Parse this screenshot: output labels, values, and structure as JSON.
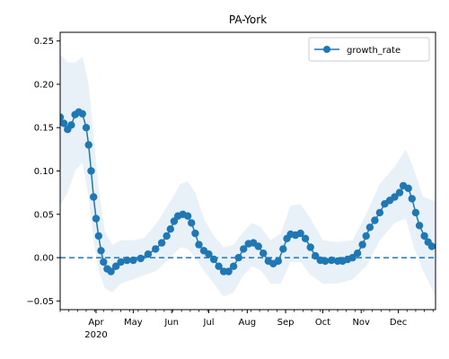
{
  "chart_data": {
    "type": "line",
    "title": "PA-York",
    "xlabel": "",
    "ylabel": "",
    "x_start": "2020-03-03",
    "x_end": "2020-12-31",
    "xlim": [
      "2020-03-03",
      "2020-12-31"
    ],
    "ylim": [
      -0.06,
      0.26
    ],
    "y_ticks": [
      {
        "value": -0.05,
        "label": "−0.05"
      },
      {
        "value": 0.0,
        "label": "0.00"
      },
      {
        "value": 0.05,
        "label": "0.05"
      },
      {
        "value": 0.1,
        "label": "0.10"
      },
      {
        "value": 0.15,
        "label": "0.15"
      },
      {
        "value": 0.2,
        "label": "0.20"
      },
      {
        "value": 0.25,
        "label": "0.25"
      }
    ],
    "x_ticks": [
      {
        "date": "2020-04-01",
        "label": "Apr",
        "sublabel": "2020"
      },
      {
        "date": "2020-05-01",
        "label": "May",
        "sublabel": ""
      },
      {
        "date": "2020-06-01",
        "label": "Jun",
        "sublabel": ""
      },
      {
        "date": "2020-07-01",
        "label": "Jul",
        "sublabel": ""
      },
      {
        "date": "2020-08-01",
        "label": "Aug",
        "sublabel": ""
      },
      {
        "date": "2020-09-01",
        "label": "Sep",
        "sublabel": ""
      },
      {
        "date": "2020-10-01",
        "label": "Oct",
        "sublabel": ""
      },
      {
        "date": "2020-11-01",
        "label": "Nov",
        "sublabel": ""
      },
      {
        "date": "2020-12-01",
        "label": "Dec",
        "sublabel": ""
      }
    ],
    "grid": false,
    "legend": {
      "placement": "top-right",
      "entries": [
        "growth_rate"
      ]
    },
    "reference_line": {
      "y": 0.0,
      "style": "dashed",
      "color": "#1f77b4"
    },
    "colors": {
      "series": "#1f77b4",
      "band": "#1f77b4"
    },
    "series": [
      {
        "name": "growth_rate",
        "marker": "circle",
        "points": [
          [
            "2020-03-03",
            0.162
          ],
          [
            "2020-03-06",
            0.155
          ],
          [
            "2020-03-09",
            0.148
          ],
          [
            "2020-03-12",
            0.153
          ],
          [
            "2020-03-15",
            0.165
          ],
          [
            "2020-03-18",
            0.168
          ],
          [
            "2020-03-21",
            0.166
          ],
          [
            "2020-03-24",
            0.15
          ],
          [
            "2020-03-26",
            0.13
          ],
          [
            "2020-03-28",
            0.1
          ],
          [
            "2020-03-30",
            0.07
          ],
          [
            "2020-04-01",
            0.045
          ],
          [
            "2020-04-03",
            0.025
          ],
          [
            "2020-04-05",
            0.008
          ],
          [
            "2020-04-07",
            -0.005
          ],
          [
            "2020-04-10",
            -0.013
          ],
          [
            "2020-04-13",
            -0.016
          ],
          [
            "2020-04-17",
            -0.01
          ],
          [
            "2020-04-21",
            -0.005
          ],
          [
            "2020-04-26",
            -0.003
          ],
          [
            "2020-05-01",
            -0.003
          ],
          [
            "2020-05-07",
            -0.001
          ],
          [
            "2020-05-13",
            0.004
          ],
          [
            "2020-05-19",
            0.01
          ],
          [
            "2020-05-24",
            0.017
          ],
          [
            "2020-05-28",
            0.025
          ],
          [
            "2020-05-31",
            0.033
          ],
          [
            "2020-06-03",
            0.042
          ],
          [
            "2020-06-06",
            0.048
          ],
          [
            "2020-06-10",
            0.05
          ],
          [
            "2020-06-14",
            0.048
          ],
          [
            "2020-06-17",
            0.04
          ],
          [
            "2020-06-20",
            0.028
          ],
          [
            "2020-06-23",
            0.015
          ],
          [
            "2020-06-27",
            0.008
          ],
          [
            "2020-07-01",
            0.004
          ],
          [
            "2020-07-05",
            -0.002
          ],
          [
            "2020-07-09",
            -0.01
          ],
          [
            "2020-07-13",
            -0.016
          ],
          [
            "2020-07-17",
            -0.016
          ],
          [
            "2020-07-21",
            -0.01
          ],
          [
            "2020-07-25",
            0.0
          ],
          [
            "2020-07-29",
            0.01
          ],
          [
            "2020-08-02",
            0.016
          ],
          [
            "2020-08-06",
            0.017
          ],
          [
            "2020-08-10",
            0.013
          ],
          [
            "2020-08-14",
            0.005
          ],
          [
            "2020-08-18",
            -0.004
          ],
          [
            "2020-08-22",
            -0.007
          ],
          [
            "2020-08-26",
            -0.004
          ],
          [
            "2020-08-30",
            0.01
          ],
          [
            "2020-09-02",
            0.022
          ],
          [
            "2020-09-05",
            0.027
          ],
          [
            "2020-09-09",
            0.026
          ],
          [
            "2020-09-13",
            0.028
          ],
          [
            "2020-09-17",
            0.022
          ],
          [
            "2020-09-21",
            0.012
          ],
          [
            "2020-09-25",
            0.002
          ],
          [
            "2020-09-29",
            -0.003
          ],
          [
            "2020-10-03",
            -0.004
          ],
          [
            "2020-10-08",
            -0.003
          ],
          [
            "2020-10-13",
            -0.004
          ],
          [
            "2020-10-17",
            -0.004
          ],
          [
            "2020-10-21",
            -0.002
          ],
          [
            "2020-10-25",
            0.0
          ],
          [
            "2020-10-29",
            0.005
          ],
          [
            "2020-11-02",
            0.015
          ],
          [
            "2020-11-05",
            0.025
          ],
          [
            "2020-11-08",
            0.035
          ],
          [
            "2020-11-12",
            0.043
          ],
          [
            "2020-11-16",
            0.052
          ],
          [
            "2020-11-20",
            0.062
          ],
          [
            "2020-11-24",
            0.066
          ],
          [
            "2020-11-28",
            0.07
          ],
          [
            "2020-12-02",
            0.075
          ],
          [
            "2020-12-05",
            0.083
          ],
          [
            "2020-12-09",
            0.08
          ],
          [
            "2020-12-12",
            0.068
          ],
          [
            "2020-12-15",
            0.052
          ],
          [
            "2020-12-18",
            0.037
          ],
          [
            "2020-12-22",
            0.025
          ],
          [
            "2020-12-25",
            0.018
          ],
          [
            "2020-12-28",
            0.013
          ]
        ],
        "band_upper": [
          [
            "2020-03-03",
            0.235
          ],
          [
            "2020-03-09",
            0.225
          ],
          [
            "2020-03-15",
            0.225
          ],
          [
            "2020-03-21",
            0.232
          ],
          [
            "2020-03-26",
            0.2
          ],
          [
            "2020-03-30",
            0.14
          ],
          [
            "2020-04-03",
            0.08
          ],
          [
            "2020-04-08",
            0.03
          ],
          [
            "2020-04-14",
            0.015
          ],
          [
            "2020-04-21",
            0.02
          ],
          [
            "2020-05-01",
            0.02
          ],
          [
            "2020-05-10",
            0.023
          ],
          [
            "2020-05-20",
            0.04
          ],
          [
            "2020-05-31",
            0.065
          ],
          [
            "2020-06-08",
            0.085
          ],
          [
            "2020-06-14",
            0.088
          ],
          [
            "2020-06-20",
            0.075
          ],
          [
            "2020-06-27",
            0.045
          ],
          [
            "2020-07-05",
            0.025
          ],
          [
            "2020-07-13",
            0.012
          ],
          [
            "2020-07-21",
            0.015
          ],
          [
            "2020-07-29",
            0.03
          ],
          [
            "2020-08-05",
            0.04
          ],
          [
            "2020-08-12",
            0.035
          ],
          [
            "2020-08-20",
            0.02
          ],
          [
            "2020-08-28",
            0.028
          ],
          [
            "2020-09-05",
            0.06
          ],
          [
            "2020-09-13",
            0.062
          ],
          [
            "2020-09-21",
            0.045
          ],
          [
            "2020-10-01",
            0.02
          ],
          [
            "2020-10-13",
            0.018
          ],
          [
            "2020-10-25",
            0.02
          ],
          [
            "2020-11-05",
            0.05
          ],
          [
            "2020-11-16",
            0.085
          ],
          [
            "2020-11-28",
            0.105
          ],
          [
            "2020-12-07",
            0.125
          ],
          [
            "2020-12-14",
            0.1
          ],
          [
            "2020-12-21",
            0.07
          ],
          [
            "2020-12-31",
            0.065
          ]
        ],
        "band_lower": [
          [
            "2020-03-03",
            0.06
          ],
          [
            "2020-03-09",
            0.075
          ],
          [
            "2020-03-15",
            0.1
          ],
          [
            "2020-03-21",
            0.11
          ],
          [
            "2020-03-26",
            0.07
          ],
          [
            "2020-03-30",
            0.02
          ],
          [
            "2020-04-03",
            -0.015
          ],
          [
            "2020-04-08",
            -0.035
          ],
          [
            "2020-04-14",
            -0.04
          ],
          [
            "2020-04-21",
            -0.03
          ],
          [
            "2020-05-01",
            -0.025
          ],
          [
            "2020-05-10",
            -0.02
          ],
          [
            "2020-05-20",
            -0.015
          ],
          [
            "2020-05-31",
            0.0
          ],
          [
            "2020-06-08",
            0.012
          ],
          [
            "2020-06-14",
            0.01
          ],
          [
            "2020-06-20",
            0.0
          ],
          [
            "2020-06-27",
            -0.015
          ],
          [
            "2020-07-05",
            -0.03
          ],
          [
            "2020-07-13",
            -0.045
          ],
          [
            "2020-07-21",
            -0.04
          ],
          [
            "2020-07-29",
            -0.02
          ],
          [
            "2020-08-05",
            -0.01
          ],
          [
            "2020-08-12",
            -0.015
          ],
          [
            "2020-08-20",
            -0.03
          ],
          [
            "2020-08-28",
            -0.03
          ],
          [
            "2020-09-05",
            -0.005
          ],
          [
            "2020-09-13",
            -0.005
          ],
          [
            "2020-09-21",
            -0.02
          ],
          [
            "2020-10-01",
            -0.03
          ],
          [
            "2020-10-13",
            -0.03
          ],
          [
            "2020-10-25",
            -0.025
          ],
          [
            "2020-11-05",
            -0.01
          ],
          [
            "2020-11-16",
            0.02
          ],
          [
            "2020-11-28",
            0.04
          ],
          [
            "2020-12-07",
            0.045
          ],
          [
            "2020-12-14",
            0.01
          ],
          [
            "2020-12-21",
            -0.015
          ],
          [
            "2020-12-31",
            -0.045
          ]
        ]
      }
    ]
  }
}
